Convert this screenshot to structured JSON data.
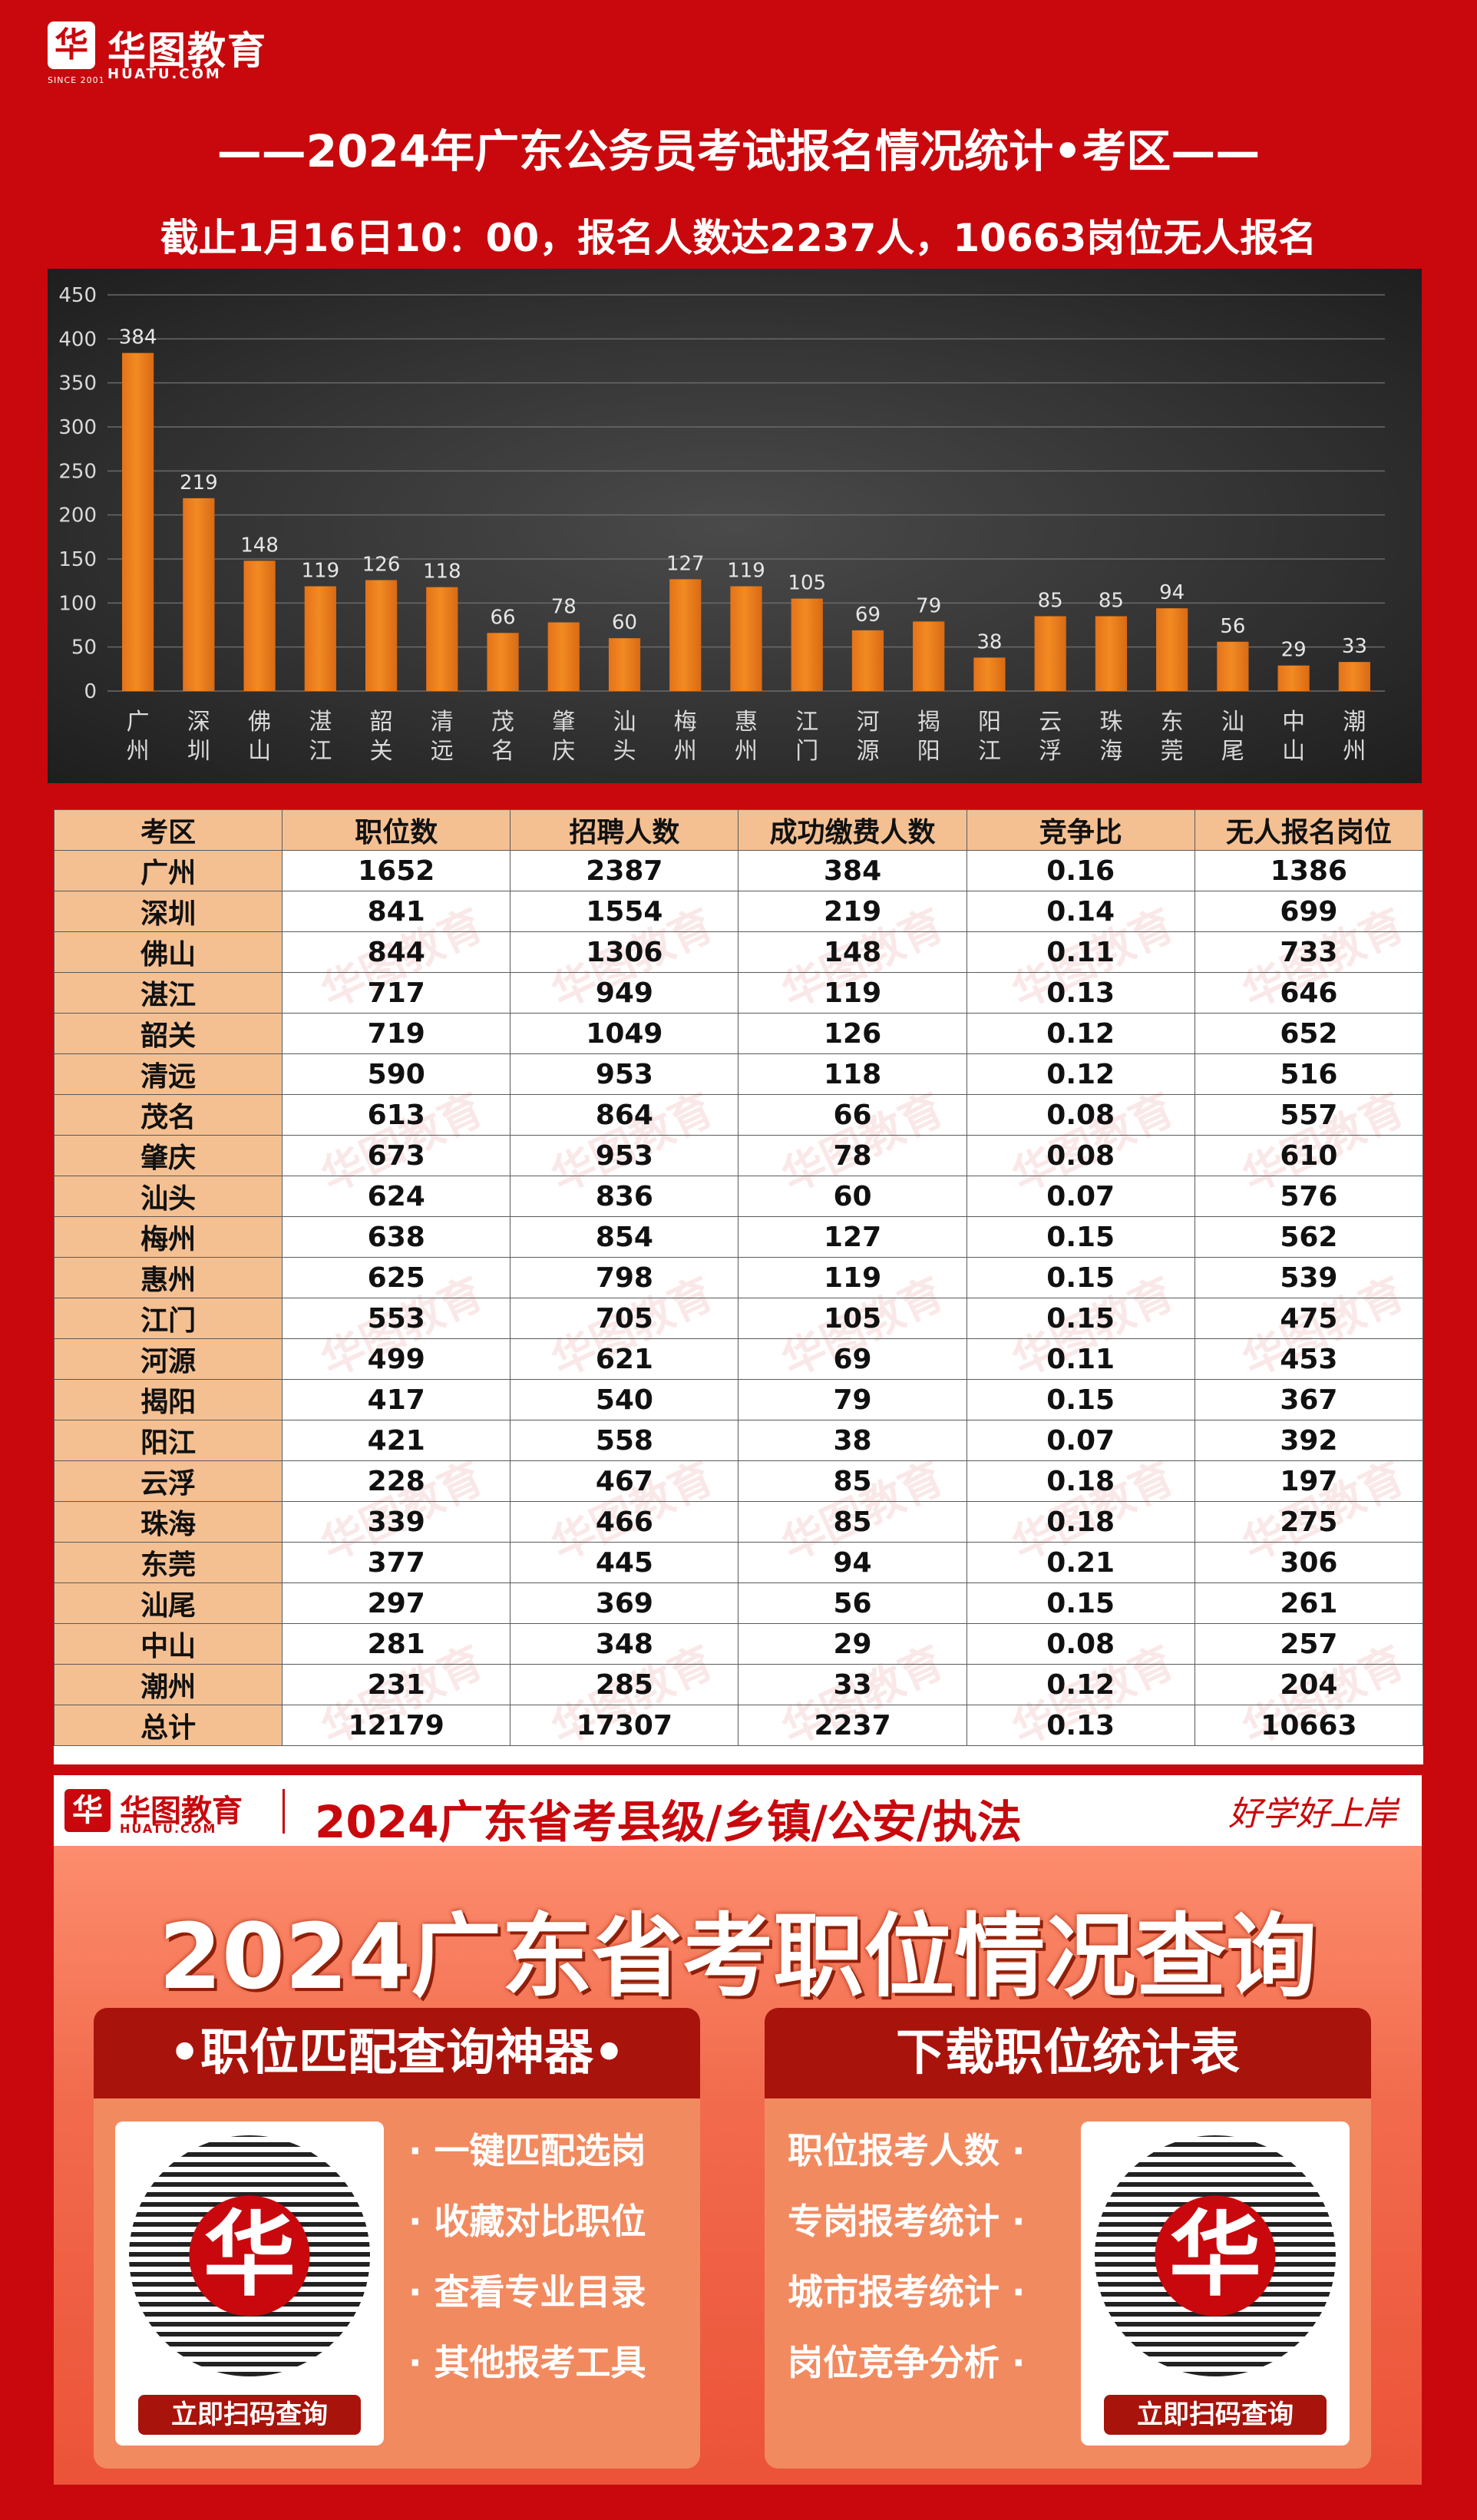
{
  "header": {
    "logo_mark": "华",
    "logo_name": "华图教育",
    "logo_sub": "HUATU.COM",
    "logo_since": "SINCE 2001",
    "title": "——2024年广东公务员考试报名情况统计•考区——",
    "subtitle": "截止1月16日10：00，报名人数达2237人，10663岗位无人报名"
  },
  "chart_data": {
    "type": "bar",
    "categories": [
      "广州",
      "深圳",
      "佛山",
      "湛江",
      "韶关",
      "清远",
      "茂名",
      "肇庆",
      "汕头",
      "梅州",
      "惠州",
      "江门",
      "河源",
      "揭阳",
      "阳江",
      "云浮",
      "珠海",
      "东莞",
      "汕尾",
      "中山",
      "潮州"
    ],
    "values": [
      384,
      219,
      148,
      119,
      126,
      118,
      66,
      78,
      60,
      127,
      119,
      105,
      69,
      79,
      38,
      85,
      85,
      94,
      56,
      29,
      33
    ],
    "ylim": [
      0,
      450
    ],
    "yticks": [
      0,
      50,
      100,
      150,
      200,
      250,
      300,
      350,
      400,
      450
    ],
    "grid": true,
    "bar_color": "#f28a22"
  },
  "table": {
    "headers": [
      "考区",
      "职位数",
      "招聘人数",
      "成功缴费人数",
      "竞争比",
      "无人报名岗位"
    ],
    "rows": [
      [
        "广州",
        "1652",
        "2387",
        "384",
        "0.16",
        "1386"
      ],
      [
        "深圳",
        "841",
        "1554",
        "219",
        "0.14",
        "699"
      ],
      [
        "佛山",
        "844",
        "1306",
        "148",
        "0.11",
        "733"
      ],
      [
        "湛江",
        "717",
        "949",
        "119",
        "0.13",
        "646"
      ],
      [
        "韶关",
        "719",
        "1049",
        "126",
        "0.12",
        "652"
      ],
      [
        "清远",
        "590",
        "953",
        "118",
        "0.12",
        "516"
      ],
      [
        "茂名",
        "613",
        "864",
        "66",
        "0.08",
        "557"
      ],
      [
        "肇庆",
        "673",
        "953",
        "78",
        "0.08",
        "610"
      ],
      [
        "汕头",
        "624",
        "836",
        "60",
        "0.07",
        "576"
      ],
      [
        "梅州",
        "638",
        "854",
        "127",
        "0.15",
        "562"
      ],
      [
        "惠州",
        "625",
        "798",
        "119",
        "0.15",
        "539"
      ],
      [
        "江门",
        "553",
        "705",
        "105",
        "0.15",
        "475"
      ],
      [
        "河源",
        "499",
        "621",
        "69",
        "0.11",
        "453"
      ],
      [
        "揭阳",
        "417",
        "540",
        "79",
        "0.15",
        "367"
      ],
      [
        "阳江",
        "421",
        "558",
        "38",
        "0.07",
        "392"
      ],
      [
        "云浮",
        "228",
        "467",
        "85",
        "0.18",
        "197"
      ],
      [
        "珠海",
        "339",
        "466",
        "85",
        "0.18",
        "275"
      ],
      [
        "东莞",
        "377",
        "445",
        "94",
        "0.21",
        "306"
      ],
      [
        "汕尾",
        "297",
        "369",
        "56",
        "0.15",
        "261"
      ],
      [
        "中山",
        "281",
        "348",
        "29",
        "0.08",
        "257"
      ],
      [
        "潮州",
        "231",
        "285",
        "33",
        "0.12",
        "204"
      ],
      [
        "总计",
        "12179",
        "17307",
        "2237",
        "0.13",
        "10663"
      ]
    ],
    "watermark": "华图教育"
  },
  "promo": {
    "logo_mark": "华",
    "logo_text": "华图教育",
    "logo_sub": "HUATU.COM",
    "head_text": "2024广东省考县级/乡镇/公安/执法",
    "slogan": "好学好上岸",
    "title": "2024广东省考职位情况查询",
    "left_card": {
      "title": "•职位匹配查询神器•",
      "features": [
        "· 一键匹配选岗",
        "· 收藏对比职位",
        "· 查看专业目录",
        "· 其他报考工具"
      ],
      "qr_label": "华",
      "button": "立即扫码查询"
    },
    "right_card": {
      "title": "下载职位统计表",
      "features": [
        "职位报考人数 ·",
        "专岗报考统计 ·",
        "城市报考统计 ·",
        "岗位竞争分析 ·"
      ],
      "qr_label": "华",
      "button": "立即扫码查询"
    }
  }
}
